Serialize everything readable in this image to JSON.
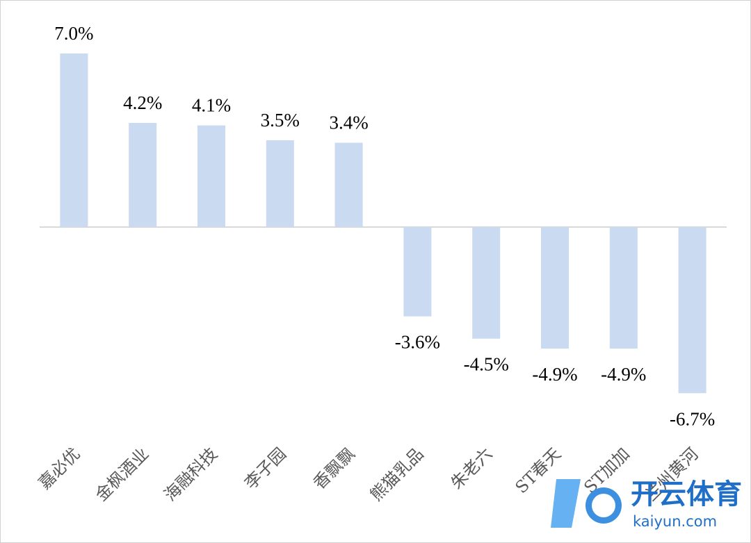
{
  "chart_data": {
    "type": "bar",
    "categories": [
      "嘉必优",
      "金枫酒业",
      "海融科技",
      "李子园",
      "香飘飘",
      "熊猫乳品",
      "朱老六",
      "ST春天",
      "ST加加",
      "兰州黄河"
    ],
    "values": [
      7.0,
      4.2,
      4.1,
      3.5,
      3.4,
      -3.6,
      -4.5,
      -4.9,
      -4.9,
      -6.7
    ],
    "value_labels": [
      "7.0%",
      "4.2%",
      "4.1%",
      "3.5%",
      "3.4%",
      "-3.6%",
      "-4.5%",
      "-4.9%",
      "-4.9%",
      "-6.7%"
    ],
    "color": "#c9daf1",
    "watermark": [
      "开云体育",
      "kaiyun.com"
    ]
  }
}
